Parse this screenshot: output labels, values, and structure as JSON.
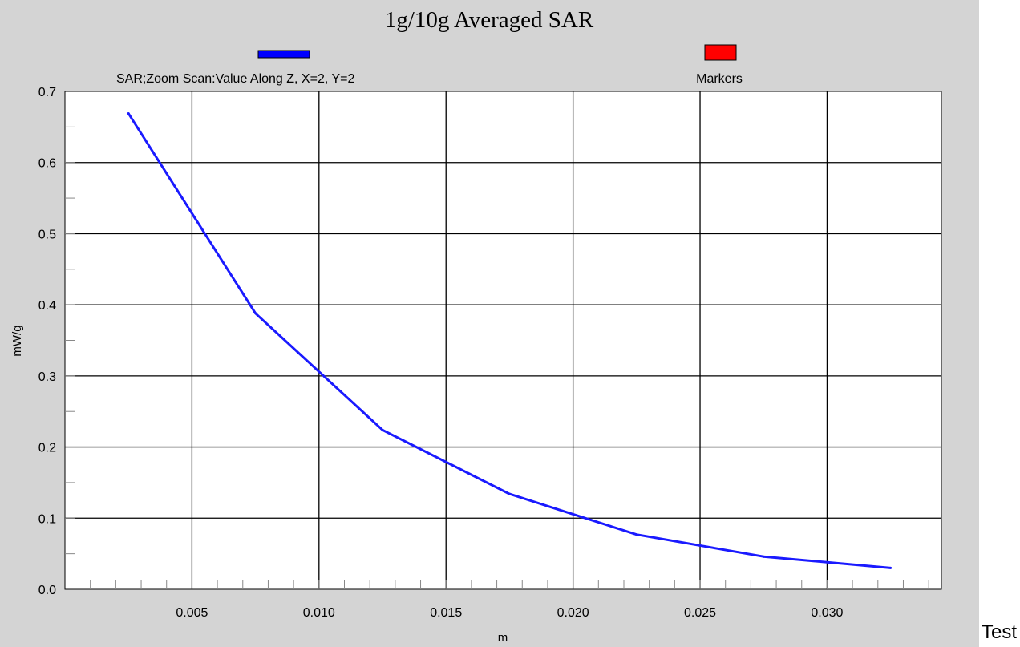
{
  "side_text": "Test",
  "chart_data": {
    "type": "line",
    "title": "1g/10g Averaged SAR",
    "xlabel": "m",
    "ylabel": "mW/g",
    "xlim": [
      0.0,
      0.0345
    ],
    "ylim": [
      0.0,
      0.7
    ],
    "x_ticks": [
      0.005,
      0.01,
      0.015,
      0.02,
      0.025,
      0.03
    ],
    "x_tick_labels": [
      "0.005",
      "0.010",
      "0.015",
      "0.020",
      "0.025",
      "0.030"
    ],
    "x_minor_step": 0.001,
    "y_ticks": [
      0.0,
      0.1,
      0.2,
      0.3,
      0.4,
      0.5,
      0.6,
      0.7
    ],
    "y_tick_labels": [
      "0.0",
      "0.1",
      "0.2",
      "0.3",
      "0.4",
      "0.5",
      "0.6",
      "0.7"
    ],
    "y_minor_step": 0.05,
    "grid": true,
    "legend_position": "top",
    "legend": [
      {
        "label": "SAR;Zoom Scan:Value Along Z, X=2, Y=2",
        "color": "#0000ff"
      },
      {
        "label": "Markers",
        "color": "#ff0000"
      }
    ],
    "series": [
      {
        "name": "SAR;Zoom Scan:Value Along Z, X=2, Y=2",
        "color": "#1a1aff",
        "x": [
          0.0025,
          0.0075,
          0.0125,
          0.0175,
          0.0225,
          0.0275,
          0.0325
        ],
        "y": [
          0.669,
          0.388,
          0.224,
          0.134,
          0.077,
          0.046,
          0.03
        ]
      }
    ]
  }
}
